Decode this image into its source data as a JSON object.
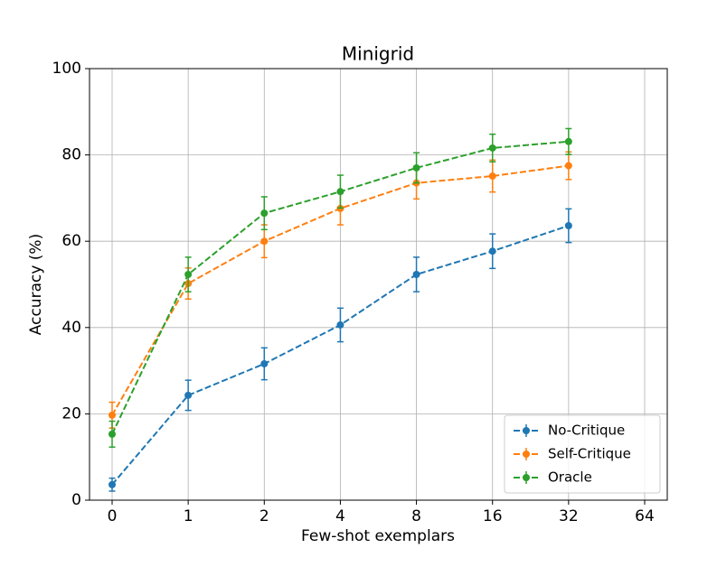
{
  "chart_data": {
    "type": "line",
    "title": "Minigrid",
    "x_label": "Few-shot exemplars",
    "y_label": "Accuracy (%)",
    "categories": [
      "0",
      "1",
      "2",
      "4",
      "8",
      "16",
      "32",
      "64"
    ],
    "series": [
      {
        "name": "No-Critique",
        "color": "#1f77b4",
        "values": [
          3.6,
          24.3,
          31.6,
          40.6,
          52.3,
          57.7,
          63.6,
          null
        ],
        "errors": [
          1.5,
          3.5,
          3.7,
          3.9,
          4.0,
          4.0,
          3.9,
          null
        ]
      },
      {
        "name": "Self-Critique",
        "color": "#ff7f0e",
        "values": [
          19.7,
          50.2,
          60.0,
          67.6,
          73.5,
          75.1,
          77.5,
          null
        ],
        "errors": [
          3.0,
          3.6,
          3.8,
          3.8,
          3.7,
          3.7,
          3.2,
          null
        ]
      },
      {
        "name": "Oracle",
        "color": "#2ca02c",
        "values": [
          15.3,
          52.3,
          66.5,
          71.5,
          77.0,
          81.6,
          83.1,
          null
        ],
        "errors": [
          3.0,
          4.0,
          3.8,
          3.8,
          3.5,
          3.2,
          3.0,
          null
        ]
      }
    ],
    "ylim": [
      0,
      100
    ],
    "yticks": [
      0,
      20,
      40,
      60,
      80,
      100
    ],
    "grid": true,
    "legend": "lower right"
  }
}
